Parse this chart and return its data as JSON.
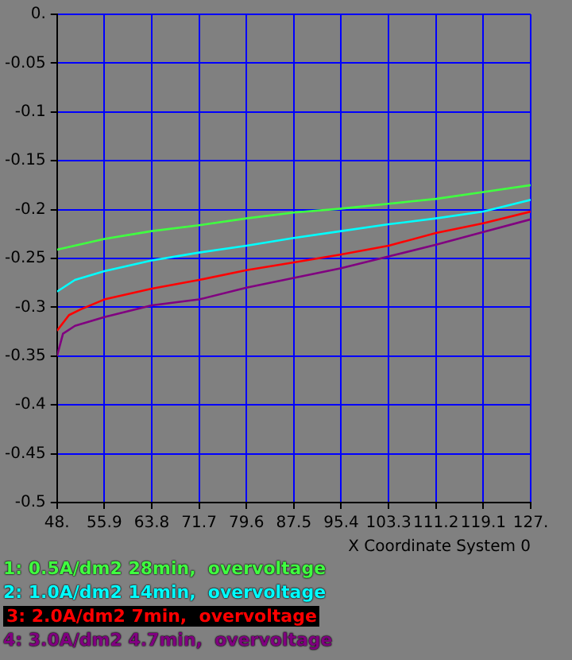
{
  "chart_data": {
    "type": "line",
    "xlabel": "X Coordinate System 0",
    "xlim": [
      48,
      127
    ],
    "xticks": [
      {
        "value": 48,
        "label": "48."
      },
      55.9,
      63.8,
      71.7,
      79.6,
      87.5,
      95.4,
      103.3,
      111.2,
      119.1,
      {
        "value": 127,
        "label": "127."
      }
    ],
    "ylim": [
      -0.5,
      0
    ],
    "yticks": [
      -0.5,
      -0.45,
      -0.4,
      -0.35,
      -0.3,
      -0.25,
      -0.2,
      -0.15,
      -0.1,
      -0.05,
      {
        "value": 0,
        "label": "0."
      }
    ],
    "grid": true,
    "legend": "bottom",
    "marker": "none",
    "line_style": "solid",
    "series": [
      {
        "name": "1: 0.5A/dm2 28min,  overvoltage",
        "color": "#40ff40",
        "x": [
          48,
          55.9,
          63.8,
          71.7,
          79.6,
          87.5,
          95.4,
          103.3,
          111.2,
          119.1,
          127
        ],
        "values": [
          -0.241,
          -0.23,
          -0.222,
          -0.216,
          -0.209,
          -0.203,
          -0.199,
          -0.194,
          -0.189,
          -0.182,
          -0.175
        ]
      },
      {
        "name": "2: 1.0A/dm2 14min,  overvoltage",
        "color": "#00ffff",
        "x": [
          48,
          51,
          55.9,
          63.8,
          71.7,
          79.6,
          87.5,
          95.4,
          103.3,
          111.2,
          119.1,
          127
        ],
        "values": [
          -0.284,
          -0.272,
          -0.263,
          -0.252,
          -0.244,
          -0.237,
          -0.229,
          -0.222,
          -0.215,
          -0.209,
          -0.202,
          -0.19
        ]
      },
      {
        "name": "3: 2.0A/dm2 7min,  overvoltage",
        "color": "#ff0000",
        "x": [
          48,
          50,
          52,
          55.9,
          63.8,
          71.7,
          79.6,
          87.5,
          95.4,
          103.3,
          111.2,
          119.1,
          127
        ],
        "values": [
          -0.324,
          -0.308,
          -0.302,
          -0.292,
          -0.281,
          -0.272,
          -0.262,
          -0.254,
          -0.246,
          -0.237,
          -0.224,
          -0.214,
          -0.202
        ]
      },
      {
        "name": "4: 3.0A/dm2 4.7min,  overvoltage",
        "color": "#800080",
        "x": [
          48,
          49,
          51,
          55.9,
          63.8,
          71.7,
          79.6,
          87.5,
          95.4,
          103.3,
          111.2,
          119.1,
          127
        ],
        "values": [
          -0.35,
          -0.327,
          -0.319,
          -0.31,
          -0.298,
          -0.292,
          -0.28,
          -0.27,
          -0.26,
          -0.248,
          -0.236,
          -0.223,
          -0.21
        ]
      }
    ]
  }
}
